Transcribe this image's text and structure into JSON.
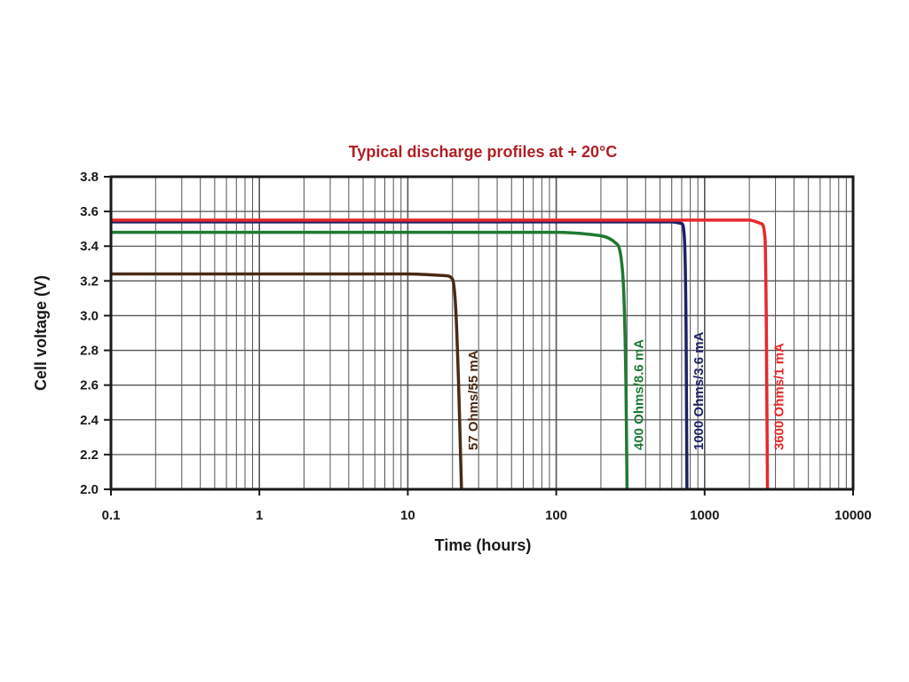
{
  "colors": {
    "title": "#b01f24",
    "axis": "#1a1a1a",
    "grid": "#555555",
    "background": "#ffffff"
  },
  "chart_data": {
    "type": "line",
    "title": "Typical discharge profiles at + 20°C",
    "xlabel": "Time (hours)",
    "ylabel": "Cell voltage (V)",
    "x_scale": "log",
    "xlim": [
      0.1,
      10000
    ],
    "ylim": [
      2.0,
      3.8
    ],
    "x_ticks": [
      "0.1",
      "1",
      "10",
      "100",
      "1000",
      "10000"
    ],
    "y_ticks": [
      "2.0",
      "2.2",
      "2.4",
      "2.6",
      "2.8",
      "3.0",
      "3.2",
      "3.4",
      "3.6",
      "3.8"
    ],
    "grid": true,
    "legend": "inline labels",
    "series": [
      {
        "name": "57 Ohms/55 mA",
        "color": "#4a2a14",
        "x": [
          0.1,
          1,
          10,
          18,
          20,
          21,
          22,
          22.5,
          23
        ],
        "y": [
          3.24,
          3.24,
          3.24,
          3.23,
          3.21,
          3.05,
          2.6,
          2.3,
          2.0
        ]
      },
      {
        "name": "400 Ohms/8.6 mA",
        "color": "#1f7a33",
        "x": [
          0.1,
          1,
          10,
          100,
          200,
          250,
          280,
          295,
          300
        ],
        "y": [
          3.48,
          3.48,
          3.48,
          3.48,
          3.46,
          3.42,
          3.25,
          2.6,
          2.0
        ]
      },
      {
        "name": "1000 Ohms/3.6 mA",
        "color": "#1c2266",
        "x": [
          0.1,
          1,
          10,
          100,
          600,
          700,
          730,
          750,
          760
        ],
        "y": [
          3.54,
          3.54,
          3.54,
          3.54,
          3.54,
          3.53,
          3.45,
          2.9,
          2.0
        ]
      },
      {
        "name": "3600 Ohms/1 mA",
        "color": "#e8282a",
        "x": [
          0.1,
          1,
          10,
          100,
          1000,
          2000,
          2400,
          2550,
          2600,
          2650
        ],
        "y": [
          3.55,
          3.55,
          3.55,
          3.55,
          3.55,
          3.55,
          3.53,
          3.45,
          3.0,
          2.0
        ]
      }
    ]
  }
}
